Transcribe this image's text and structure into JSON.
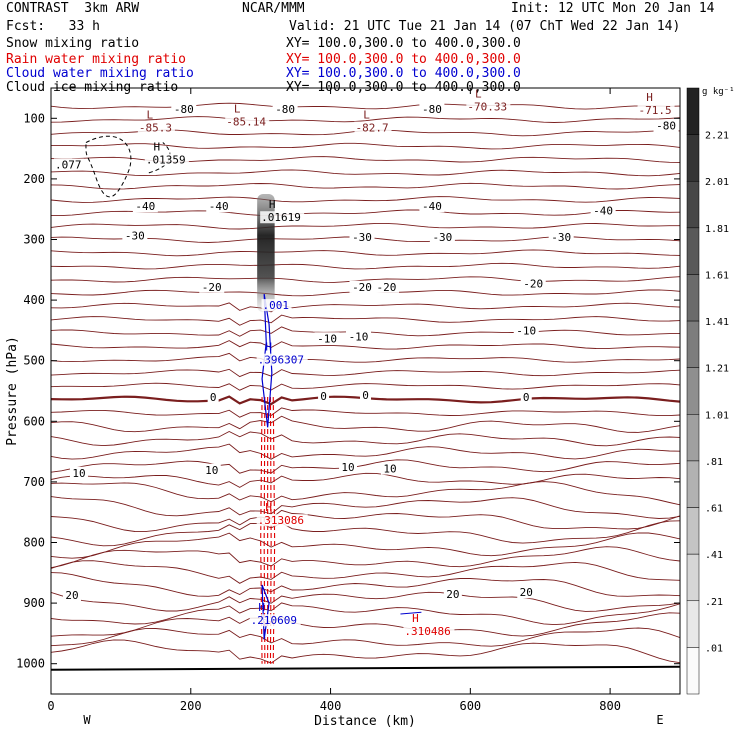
{
  "header": {
    "left1": "CONTRAST  3km ARW",
    "center1": "NCAR/MMM",
    "right1": "Init: 12 UTC Mon 20 Jan 14",
    "left2": "Fcst:   33 h",
    "right2": "Valid: 21 UTC Tue 21 Jan 14 (07 ChT Wed 22 Jan 14)",
    "fields": [
      {
        "name": "Snow mixing ratio",
        "xy": "XY= 100.0,300.0 to 400.0,300.0",
        "color": "#000000"
      },
      {
        "name": "Rain water mixing ratio",
        "xy": "XY= 100.0,300.0 to 400.0,300.0",
        "color": "#e00000"
      },
      {
        "name": "Cloud water mixing ratio",
        "xy": "XY= 100.0,300.0 to 400.0,300.0",
        "color": "#0000d0"
      },
      {
        "name": "Cloud ice mixing ratio",
        "xy": "XY= 100.0,300.0 to 400.0,300.0",
        "color": "#000000"
      }
    ]
  },
  "colors": {
    "temperature": "#7a1e1e",
    "rain": "#e00000",
    "cloud_water": "#0000d0",
    "cloud_ice": "#000000",
    "snow_shade_max": "#1a1a1a"
  },
  "chart_data": {
    "type": "cross-section",
    "xlabel": "Distance (km)",
    "ylabel": "Pressure (hPa)",
    "xlim": [
      0,
      900
    ],
    "ylim": [
      1050,
      50
    ],
    "x_ticks": [
      0,
      200,
      400,
      600,
      800
    ],
    "y_ticks": [
      100,
      200,
      300,
      400,
      500,
      600,
      700,
      800,
      900,
      1000
    ],
    "direction_left": "W",
    "direction_right": "E",
    "temperature_labels": [
      {
        "text": "-80",
        "x": 190,
        "p": 85
      },
      {
        "text": "-80",
        "x": 335,
        "p": 85
      },
      {
        "text": "-80",
        "x": 545,
        "p": 85
      },
      {
        "text": "-80",
        "x": 880,
        "p": 112
      },
      {
        "text": "-40",
        "x": 135,
        "p": 245
      },
      {
        "text": "-40",
        "x": 240,
        "p": 245
      },
      {
        "text": "-40",
        "x": 545,
        "p": 245
      },
      {
        "text": "-40",
        "x": 790,
        "p": 252
      },
      {
        "text": "-30",
        "x": 120,
        "p": 293
      },
      {
        "text": "-30",
        "x": 445,
        "p": 296
      },
      {
        "text": "-30",
        "x": 560,
        "p": 296
      },
      {
        "text": "-30",
        "x": 730,
        "p": 296
      },
      {
        "text": "-20",
        "x": 230,
        "p": 378
      },
      {
        "text": "-20",
        "x": 445,
        "p": 378
      },
      {
        "text": "-20",
        "x": 480,
        "p": 378
      },
      {
        "text": "-20",
        "x": 690,
        "p": 373
      },
      {
        "text": "-10",
        "x": 395,
        "p": 463
      },
      {
        "text": "-10",
        "x": 440,
        "p": 460
      },
      {
        "text": "-10",
        "x": 680,
        "p": 450
      },
      {
        "text": "0",
        "x": 232,
        "p": 560
      },
      {
        "text": "0",
        "x": 390,
        "p": 558
      },
      {
        "text": "0",
        "x": 450,
        "p": 557
      },
      {
        "text": "0",
        "x": 680,
        "p": 560
      },
      {
        "text": "10",
        "x": 40,
        "p": 685
      },
      {
        "text": "10",
        "x": 230,
        "p": 680
      },
      {
        "text": "10",
        "x": 425,
        "p": 675
      },
      {
        "text": "10",
        "x": 485,
        "p": 678
      },
      {
        "text": "20",
        "x": 30,
        "p": 887
      },
      {
        "text": "20",
        "x": 575,
        "p": 885
      },
      {
        "text": "20",
        "x": 680,
        "p": 882
      }
    ],
    "extrema": [
      {
        "mark": "L",
        "value": "-85.3",
        "x": 130,
        "p": 107,
        "color": "temperature"
      },
      {
        "mark": "L",
        "value": "-85.14",
        "x": 255,
        "p": 97,
        "color": "temperature"
      },
      {
        "mark": "L",
        "value": "-82.7",
        "x": 440,
        "p": 107,
        "color": "temperature"
      },
      {
        "mark": "L",
        "value": "-70.33",
        "x": 600,
        "p": 72,
        "color": "temperature"
      },
      {
        "mark": "H",
        "value": "-71.5",
        "x": 845,
        "p": 78,
        "color": "temperature"
      },
      {
        "mark": "H",
        "value": ".01359",
        "x": 140,
        "p": 160,
        "color": "cloud_ice"
      },
      {
        "mark": "",
        "value": ".077",
        "x": 10,
        "p": 168,
        "color": "cloud_ice"
      },
      {
        "mark": "H",
        "value": ".01619",
        "x": 305,
        "p": 255,
        "color": "cloud_ice"
      },
      {
        "mark": "",
        "value": ".001",
        "x": 307,
        "p": 400,
        "color": "cloud_water"
      },
      {
        "mark": "H",
        "value": ".396307",
        "x": 300,
        "p": 490,
        "color": "cloud_water"
      },
      {
        "mark": "H",
        "value": ".313086",
        "x": 300,
        "p": 755,
        "color": "rain"
      },
      {
        "mark": "H",
        "value": ".210609",
        "x": 290,
        "p": 920,
        "color": "cloud_water"
      },
      {
        "mark": "H",
        "value": ".310486",
        "x": 510,
        "p": 938,
        "color": "rain"
      }
    ],
    "snow_colorbar": {
      "unit": "g kg⁻¹",
      "levels": [
        "2.21",
        "2.01",
        "1.81",
        "1.61",
        "1.41",
        "1.21",
        "1.01",
        ".81",
        ".61",
        ".41",
        ".21",
        ".01"
      ]
    }
  }
}
